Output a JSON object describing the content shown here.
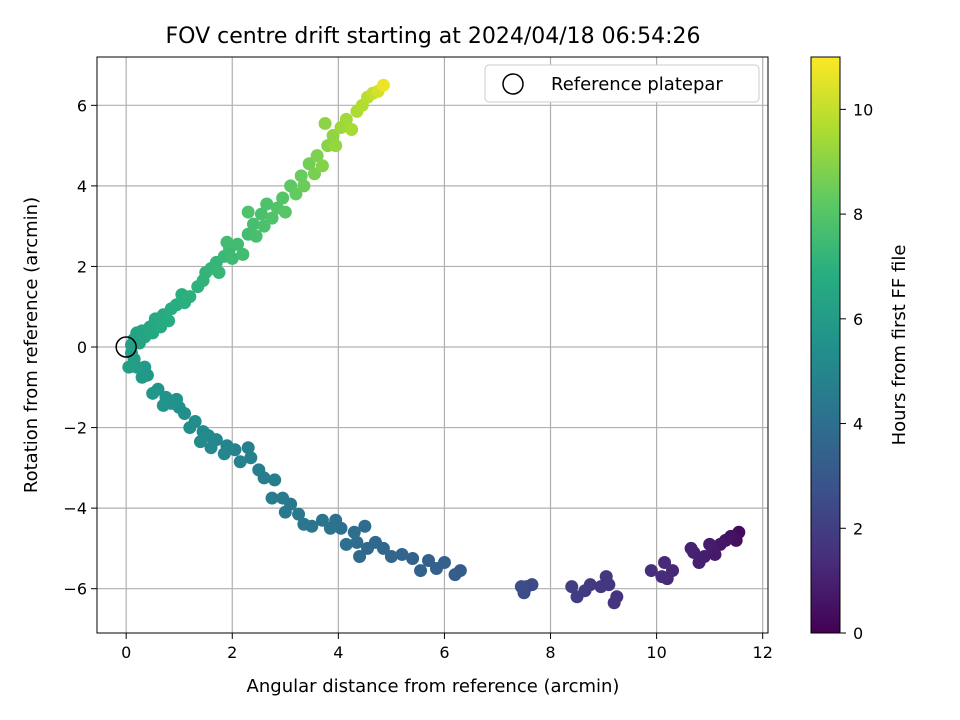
{
  "chart_data": {
    "type": "scatter",
    "title": "FOV centre drift starting at 2024/04/18 06:54:26",
    "xlabel": "Angular distance from reference (arcmin)",
    "ylabel": "Rotation from reference (arcmin)",
    "xlim": [
      -0.55,
      12.1
    ],
    "ylim": [
      -7.1,
      7.2
    ],
    "xticks": [
      0,
      2,
      4,
      6,
      8,
      10,
      12
    ],
    "yticks": [
      -6,
      -4,
      -2,
      0,
      2,
      4,
      6
    ],
    "grid": true,
    "legend": {
      "placement": "top-right",
      "entries": [
        "Reference platepar"
      ]
    },
    "reference_point": {
      "x": 0,
      "y": 0,
      "label": "Reference platepar"
    },
    "colorbar": {
      "label": "Hours from first FF file",
      "range": [
        0,
        11
      ],
      "ticks": [
        0,
        2,
        4,
        6,
        8,
        10
      ],
      "colormap": "viridis"
    },
    "series": [
      {
        "color_by": "hours",
        "points": [
          [
            11.55,
            -4.6,
            0.3
          ],
          [
            11.5,
            -4.8,
            0.4
          ],
          [
            11.4,
            -4.7,
            0.5
          ],
          [
            11.3,
            -4.8,
            0.6
          ],
          [
            11.2,
            -4.9,
            0.7
          ],
          [
            11.05,
            -5.0,
            0.8
          ],
          [
            11.0,
            -4.9,
            0.85
          ],
          [
            10.9,
            -5.2,
            0.9
          ],
          [
            10.8,
            -5.35,
            0.95
          ],
          [
            10.7,
            -5.1,
            1.0
          ],
          [
            10.65,
            -5.0,
            1.05
          ],
          [
            11.1,
            -5.15,
            0.75
          ],
          [
            10.3,
            -5.55,
            1.2
          ],
          [
            10.2,
            -5.75,
            1.25
          ],
          [
            10.15,
            -5.35,
            1.3
          ],
          [
            10.1,
            -5.7,
            1.35
          ],
          [
            9.9,
            -5.55,
            1.4
          ],
          [
            9.25,
            -6.2,
            1.6
          ],
          [
            9.2,
            -6.35,
            1.65
          ],
          [
            9.1,
            -5.9,
            1.7
          ],
          [
            9.05,
            -5.7,
            1.75
          ],
          [
            8.95,
            -5.95,
            1.8
          ],
          [
            8.75,
            -5.9,
            1.85
          ],
          [
            8.65,
            -6.05,
            1.9
          ],
          [
            8.5,
            -6.2,
            1.95
          ],
          [
            8.4,
            -5.95,
            2.0
          ],
          [
            7.65,
            -5.9,
            2.4
          ],
          [
            7.55,
            -5.95,
            2.45
          ],
          [
            7.5,
            -6.1,
            2.5
          ],
          [
            7.45,
            -5.95,
            2.55
          ],
          [
            6.3,
            -5.55,
            3.2
          ],
          [
            6.2,
            -5.65,
            3.25
          ],
          [
            6.0,
            -5.35,
            3.3
          ],
          [
            5.85,
            -5.5,
            3.35
          ],
          [
            5.7,
            -5.3,
            3.4
          ],
          [
            5.55,
            -5.55,
            3.45
          ],
          [
            5.4,
            -5.25,
            3.5
          ],
          [
            5.2,
            -5.15,
            3.55
          ],
          [
            5.0,
            -5.2,
            3.6
          ],
          [
            4.85,
            -5.0,
            3.65
          ],
          [
            4.7,
            -4.85,
            3.7
          ],
          [
            4.55,
            -5.0,
            3.75
          ],
          [
            4.4,
            -5.2,
            3.8
          ],
          [
            4.35,
            -4.85,
            3.85
          ],
          [
            4.5,
            -4.45,
            3.9
          ],
          [
            4.3,
            -4.6,
            3.95
          ],
          [
            4.15,
            -4.9,
            4.0
          ],
          [
            4.05,
            -4.5,
            4.05
          ],
          [
            3.95,
            -4.3,
            4.1
          ],
          [
            3.85,
            -4.5,
            4.15
          ],
          [
            3.7,
            -4.3,
            4.2
          ],
          [
            3.5,
            -4.45,
            4.25
          ],
          [
            3.35,
            -4.4,
            4.3
          ],
          [
            3.25,
            -4.15,
            4.35
          ],
          [
            3.1,
            -3.9,
            4.4
          ],
          [
            3.0,
            -4.1,
            4.45
          ],
          [
            2.95,
            -3.75,
            4.5
          ],
          [
            2.75,
            -3.75,
            4.55
          ],
          [
            2.8,
            -3.3,
            4.6
          ],
          [
            2.6,
            -3.25,
            4.65
          ],
          [
            2.5,
            -3.05,
            4.7
          ],
          [
            2.35,
            -2.75,
            4.75
          ],
          [
            2.3,
            -2.5,
            4.8
          ],
          [
            2.15,
            -2.85,
            4.85
          ],
          [
            2.05,
            -2.55,
            4.9
          ],
          [
            1.9,
            -2.45,
            4.95
          ],
          [
            1.85,
            -2.65,
            5.0
          ],
          [
            1.7,
            -2.3,
            5.05
          ],
          [
            1.6,
            -2.5,
            5.1
          ],
          [
            1.55,
            -2.2,
            5.15
          ],
          [
            1.45,
            -2.1,
            5.2
          ],
          [
            1.4,
            -2.35,
            5.25
          ],
          [
            1.3,
            -1.85,
            5.3
          ],
          [
            1.2,
            -2.0,
            5.35
          ],
          [
            1.1,
            -1.65,
            5.4
          ],
          [
            1.0,
            -1.5,
            5.45
          ],
          [
            0.95,
            -1.3,
            5.5
          ],
          [
            0.85,
            -1.4,
            5.55
          ],
          [
            0.75,
            -1.25,
            5.6
          ],
          [
            0.7,
            -1.45,
            5.65
          ],
          [
            0.6,
            -1.05,
            5.7
          ],
          [
            0.5,
            -1.15,
            5.75
          ],
          [
            0.4,
            -0.7,
            5.85
          ],
          [
            0.35,
            -0.5,
            5.9
          ],
          [
            0.3,
            -0.75,
            5.95
          ],
          [
            0.2,
            -0.5,
            6.0
          ],
          [
            0.15,
            -0.3,
            6.05
          ],
          [
            0.1,
            -0.15,
            6.1
          ],
          [
            0.05,
            -0.5,
            6.15
          ],
          [
            0.1,
            0.05,
            6.2
          ],
          [
            0.15,
            0.2,
            6.25
          ],
          [
            0.2,
            0.35,
            6.3
          ],
          [
            0.25,
            0.1,
            6.35
          ],
          [
            0.3,
            0.4,
            6.4
          ],
          [
            0.35,
            0.25,
            6.45
          ],
          [
            0.45,
            0.5,
            6.5
          ],
          [
            0.5,
            0.35,
            6.55
          ],
          [
            0.55,
            0.7,
            6.6
          ],
          [
            0.65,
            0.5,
            6.65
          ],
          [
            0.7,
            0.8,
            6.7
          ],
          [
            0.8,
            0.65,
            6.75
          ],
          [
            0.85,
            0.95,
            6.8
          ],
          [
            0.95,
            1.05,
            6.85
          ],
          [
            1.05,
            1.3,
            6.9
          ],
          [
            1.1,
            1.1,
            6.95
          ],
          [
            1.2,
            1.25,
            7.0
          ],
          [
            1.35,
            1.5,
            7.05
          ],
          [
            1.45,
            1.65,
            7.1
          ],
          [
            1.5,
            1.85,
            7.15
          ],
          [
            1.6,
            1.95,
            7.2
          ],
          [
            1.7,
            2.1,
            7.25
          ],
          [
            1.75,
            1.85,
            7.3
          ],
          [
            1.85,
            2.25,
            7.35
          ],
          [
            1.95,
            2.45,
            7.4
          ],
          [
            2.0,
            2.2,
            7.45
          ],
          [
            2.1,
            2.55,
            7.5
          ],
          [
            2.2,
            2.3,
            7.55
          ],
          [
            2.3,
            2.8,
            7.6
          ],
          [
            2.4,
            3.05,
            7.65
          ],
          [
            2.45,
            2.75,
            7.7
          ],
          [
            2.55,
            3.3,
            7.75
          ],
          [
            2.6,
            3.0,
            7.8
          ],
          [
            2.65,
            3.55,
            7.85
          ],
          [
            2.75,
            3.2,
            7.9
          ],
          [
            2.85,
            3.45,
            7.95
          ],
          [
            2.95,
            3.7,
            8.0
          ],
          [
            3.0,
            3.35,
            8.1
          ],
          [
            3.1,
            4.0,
            8.2
          ],
          [
            3.2,
            3.8,
            8.3
          ],
          [
            3.3,
            4.25,
            8.4
          ],
          [
            3.35,
            4.0,
            8.5
          ],
          [
            3.45,
            4.55,
            8.6
          ],
          [
            3.55,
            4.3,
            8.7
          ],
          [
            3.6,
            4.75,
            8.8
          ],
          [
            3.7,
            4.5,
            8.9
          ],
          [
            3.8,
            5.0,
            9.0
          ],
          [
            3.9,
            5.25,
            9.1
          ],
          [
            3.95,
            5.0,
            9.2
          ],
          [
            4.05,
            5.45,
            9.3
          ],
          [
            4.15,
            5.65,
            9.4
          ],
          [
            4.25,
            5.4,
            9.5
          ],
          [
            4.35,
            5.85,
            9.6
          ],
          [
            4.45,
            6.0,
            9.7
          ],
          [
            4.55,
            6.2,
            9.8
          ],
          [
            4.65,
            6.3,
            10.0
          ],
          [
            4.75,
            6.35,
            10.3
          ],
          [
            4.85,
            6.5,
            10.7
          ],
          [
            3.75,
            5.55,
            9.05
          ],
          [
            2.3,
            3.35,
            7.9
          ],
          [
            1.9,
            2.6,
            7.6
          ]
        ]
      }
    ]
  }
}
